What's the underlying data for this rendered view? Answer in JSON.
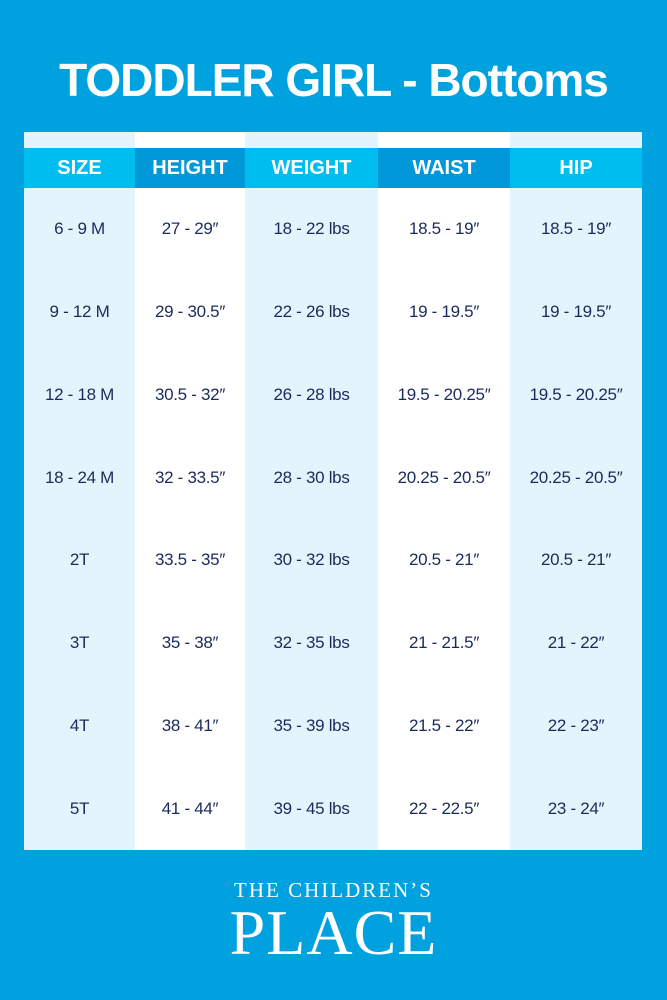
{
  "title": "TODDLER GIRL - Bottoms",
  "colors": {
    "background": "#00a1df",
    "header_light": "#00bdf0",
    "header_dark": "#0098d9",
    "body_tint": "#e3f4fc",
    "text": "#1b2a5c"
  },
  "table": {
    "columns": [
      {
        "header": "SIZE",
        "values": [
          "6 - 9 M",
          "9 - 12 M",
          "12  - 18 M",
          "18 - 24 M",
          "2T",
          "3T",
          "4T",
          "5T"
        ]
      },
      {
        "header": "HEIGHT",
        "values": [
          "27 - 29″",
          "29 - 30.5″",
          "30.5 - 32″",
          "32 - 33.5″",
          "33.5 - 35″",
          "35 - 38″",
          "38 - 41″",
          "41 - 44″"
        ]
      },
      {
        "header": "WEIGHT",
        "values": [
          "18 - 22 lbs",
          "22 - 26 lbs",
          "26 - 28 lbs",
          "28 - 30 lbs",
          "30 - 32 lbs",
          "32 - 35 lbs",
          "35 - 39 lbs",
          "39 - 45 lbs"
        ]
      },
      {
        "header": "WAIST",
        "values": [
          "18.5 - 19″",
          "19 - 19.5″",
          "19.5 - 20.25″",
          "20.25 - 20.5″",
          "20.5 - 21″",
          "21 - 21.5″",
          "21.5 - 22″",
          "22 - 22.5″"
        ]
      },
      {
        "header": "HIP",
        "values": [
          "18.5 - 19″",
          "19 - 19.5″",
          "19.5 - 20.25″",
          "20.25 - 20.5″",
          "20.5 - 21″",
          "21 - 22″",
          "22 - 23″",
          "23 - 24″"
        ]
      }
    ]
  },
  "logo": {
    "line1": "THE CHILDREN’S",
    "line2": "PLACE"
  }
}
